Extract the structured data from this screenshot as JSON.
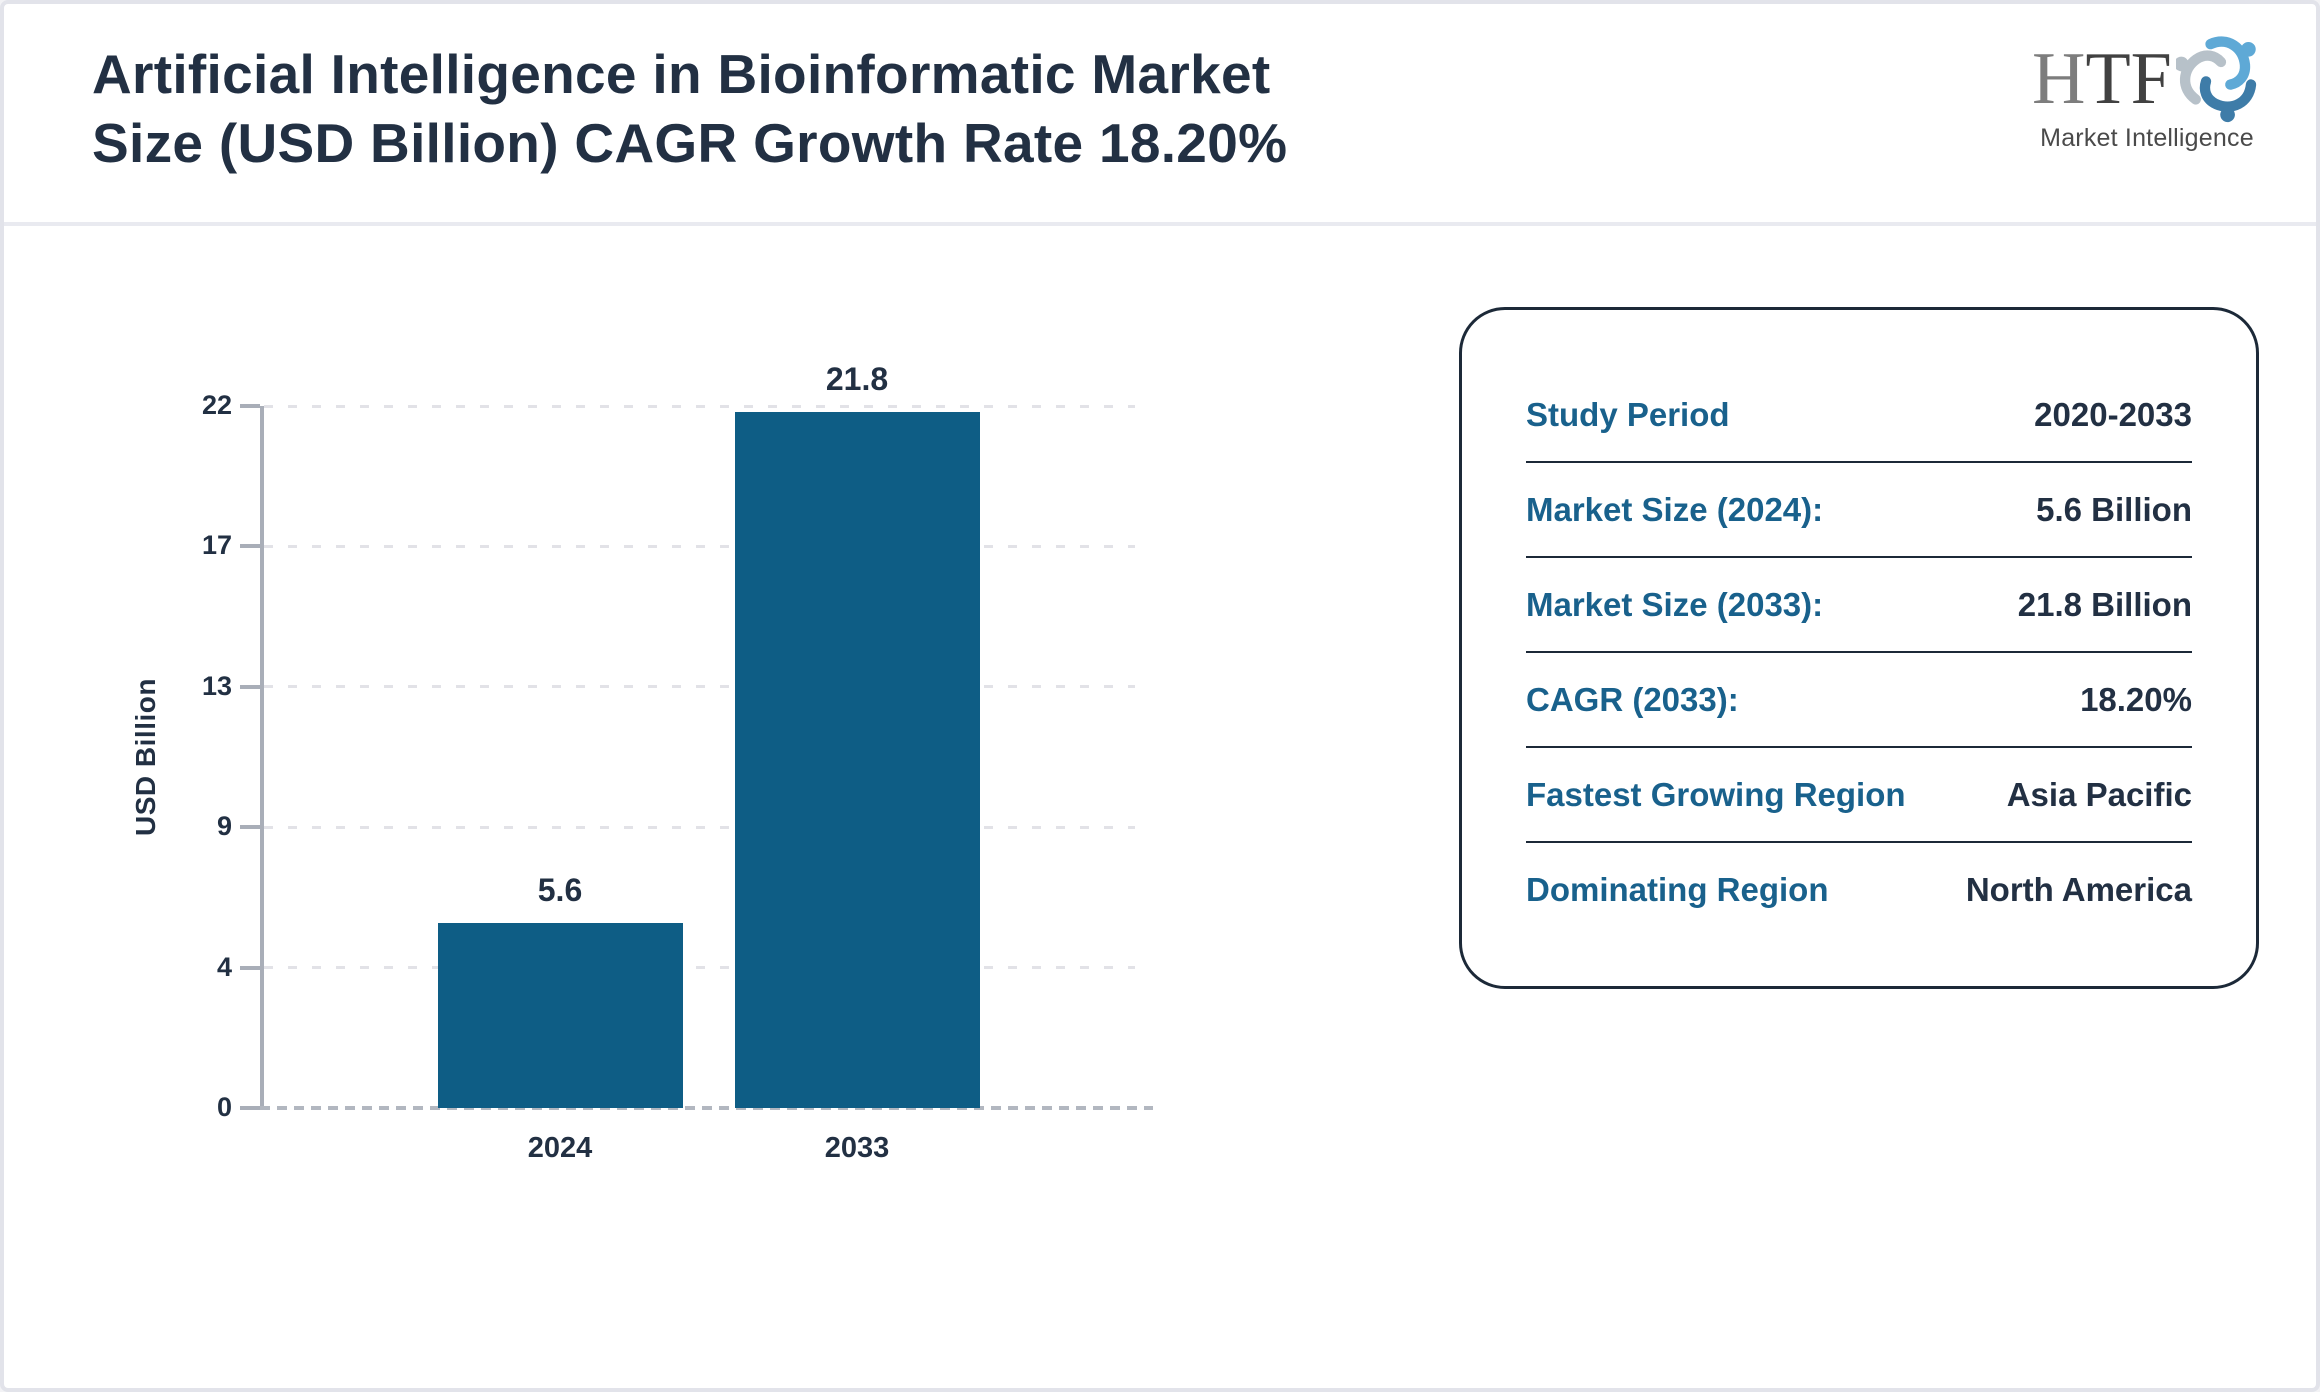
{
  "header": {
    "title_line1": "Artificial Intelligence in Bioinformatic Market",
    "title_line2": "Size (USD Billion) CAGR Growth Rate 18.20%",
    "logo": {
      "text_part1": "H",
      "text_part2": "TF",
      "subtext": "Market Intelligence",
      "icon": "three-figures-swirl-icon",
      "icon_colors": {
        "top": "#5ea9d6",
        "right": "#3e7ca8",
        "left": "#b7c1c9"
      }
    }
  },
  "chart_data": {
    "type": "bar",
    "title": "Artificial Intelligence in Bioinformatic Market Size (USD Billion) CAGR Growth Rate 18.20%",
    "categories": [
      "2024",
      "2033"
    ],
    "values": [
      5.6,
      21.8
    ],
    "value_labels": [
      "5.6",
      "21.8"
    ],
    "xlabel": "",
    "ylabel": "USD Billion",
    "ylim": [
      0,
      22
    ],
    "yticks": [
      0,
      4,
      9,
      13,
      17,
      22
    ],
    "ytick_labels": [
      "0",
      "4",
      "9",
      "13",
      "17",
      "22"
    ],
    "grid": "horizontal-dotted",
    "legend": "none",
    "bar_color": "#0e5d85",
    "label_color": "#223043"
  },
  "info_card": {
    "rows": [
      {
        "label": "Study Period",
        "value": "2020-2033"
      },
      {
        "label": "Market Size (2024):",
        "value": "5.6 Billion"
      },
      {
        "label": "Market Size (2033):",
        "value": "21.8 Billion"
      },
      {
        "label": "CAGR (2033):",
        "value": "18.20%"
      },
      {
        "label": "Fastest Growing Region",
        "value": "Asia Pacific"
      },
      {
        "label": "Dominating Region",
        "value": "North America"
      }
    ]
  },
  "colors": {
    "accent_teal": "#19618c",
    "bar_teal": "#0e5d85",
    "dark_navy_text": "#223043",
    "axis_gray": "#a9aeb8",
    "gridline_gray": "#e2e2e7",
    "divider_gray": "#e9eaf0",
    "outer_border": "#e2e3ea"
  }
}
